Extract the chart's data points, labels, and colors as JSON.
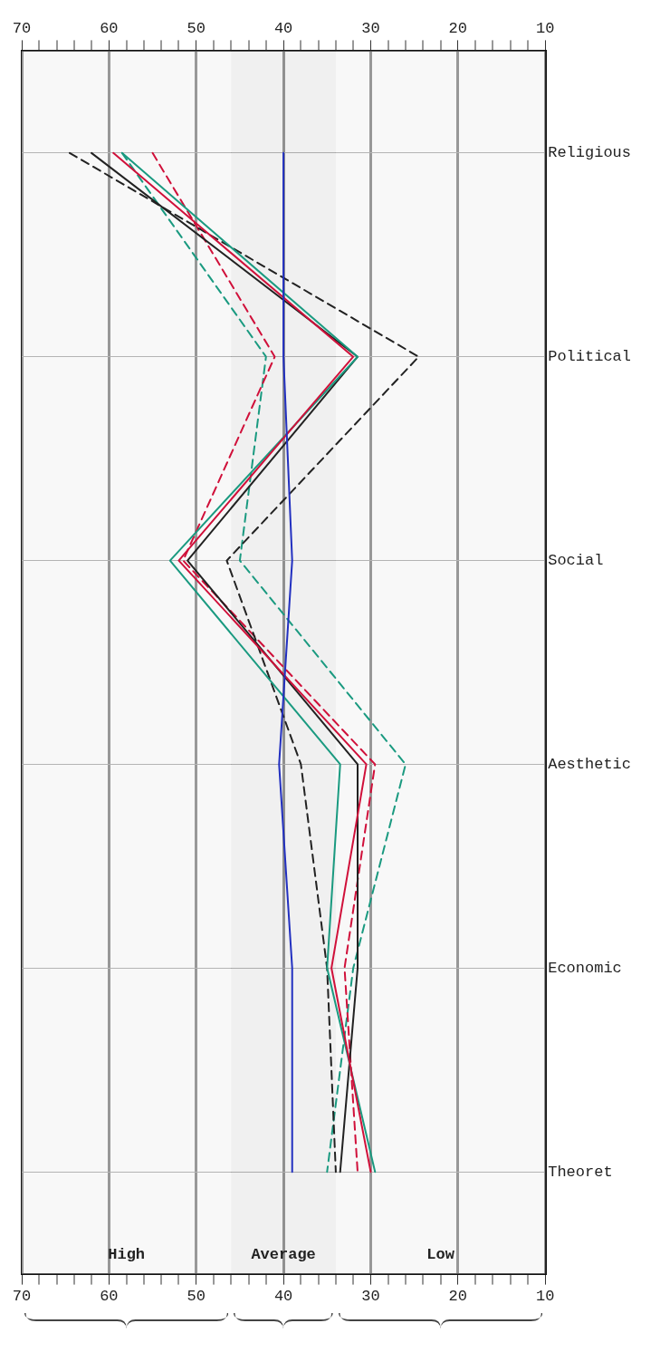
{
  "chart_data": {
    "type": "line",
    "categories": [
      "Religious",
      "Political",
      "Social",
      "Aesthetic",
      "Economic",
      "Theoret"
    ],
    "series": [
      {
        "color": "#2230c0",
        "values": [
          40,
          40,
          39,
          40.5,
          39,
          39
        ],
        "line_style": "solid"
      },
      {
        "color": "#d0103a",
        "values": [
          59.5,
          32,
          52,
          30.5,
          34.5,
          30
        ],
        "line_style": "solid"
      },
      {
        "color": "#1a9a80",
        "values": [
          58.5,
          31.5,
          53,
          33.5,
          35,
          29.5
        ],
        "line_style": "solid"
      },
      {
        "color": "#222222",
        "values": [
          62,
          31.5,
          51,
          31.5,
          31.5,
          33.5
        ],
        "line_style": "solid"
      },
      {
        "color": "#222222",
        "values": [
          64.5,
          24.5,
          46.5,
          38,
          35,
          34
        ],
        "line_style": "dashed"
      },
      {
        "color": "#d0103a",
        "values": [
          55,
          41,
          51.5,
          29.5,
          33,
          31.5
        ],
        "line_style": "dashed"
      },
      {
        "color": "#1a9a80",
        "values": [
          58.5,
          42,
          45,
          26,
          32,
          35
        ],
        "line_style": "dashed"
      }
    ],
    "orientation": "horizontal",
    "xlim": [
      70,
      10
    ],
    "xticks": [
      70,
      {
        "value": 68,
        "label": null
      },
      {
        "value": 66,
        "label": null
      },
      {
        "value": 64,
        "label": null
      },
      {
        "value": 62,
        "label": null
      },
      60,
      {
        "value": 58,
        "label": null
      },
      {
        "value": 56,
        "label": null
      },
      {
        "value": 54,
        "label": null
      },
      {
        "value": 52,
        "label": null
      },
      50,
      {
        "value": 48,
        "label": null
      },
      {
        "value": 46,
        "label": null
      },
      {
        "value": 44,
        "label": null
      },
      {
        "value": 42,
        "label": null
      },
      40,
      {
        "value": 38,
        "label": null
      },
      {
        "value": 36,
        "label": null
      },
      {
        "value": 34,
        "label": null
      },
      {
        "value": 32,
        "label": null
      },
      30,
      {
        "value": 28,
        "label": null
      },
      {
        "value": 26,
        "label": null
      },
      {
        "value": 24,
        "label": null
      },
      {
        "value": 22,
        "label": null
      },
      20,
      {
        "value": 18,
        "label": null
      },
      {
        "value": 16,
        "label": null
      },
      {
        "value": 14,
        "label": null
      },
      {
        "value": 12,
        "label": null
      },
      10
    ],
    "x2lim": [
      70,
      10
    ],
    "x2ticks": [
      70,
      {
        "value": 68,
        "label": null
      },
      {
        "value": 66,
        "label": null
      },
      {
        "value": 64,
        "label": null
      },
      {
        "value": 62,
        "label": null
      },
      60,
      {
        "value": 58,
        "label": null
      },
      {
        "value": 56,
        "label": null
      },
      {
        "value": 54,
        "label": null
      },
      {
        "value": 52,
        "label": null
      },
      50,
      {
        "value": 48,
        "label": null
      },
      {
        "value": 46,
        "label": null
      },
      {
        "value": 44,
        "label": null
      },
      {
        "value": 42,
        "label": null
      },
      40,
      {
        "value": 38,
        "label": null
      },
      {
        "value": 36,
        "label": null
      },
      {
        "value": 34,
        "label": null
      },
      {
        "value": 32,
        "label": null
      },
      30,
      {
        "value": 28,
        "label": null
      },
      {
        "value": 26,
        "label": null
      },
      {
        "value": 24,
        "label": null
      },
      {
        "value": 22,
        "label": null
      },
      20,
      {
        "value": 18,
        "label": null
      },
      {
        "value": 16,
        "label": null
      },
      {
        "value": 14,
        "label": null
      },
      {
        "value": 12,
        "label": null
      },
      10
    ],
    "bands": [
      {
        "axis": "x",
        "from": 70,
        "to": 46,
        "label": "High",
        "color": "#f3f3f3"
      },
      {
        "axis": "x",
        "from": 46,
        "to": 34,
        "label": "Average",
        "color": "#e6e6e6"
      },
      {
        "axis": "x",
        "from": 34,
        "to": 10,
        "label": "Low",
        "color": "#f3f3f3"
      }
    ],
    "grid": true,
    "legend": false,
    "marker": "none"
  }
}
